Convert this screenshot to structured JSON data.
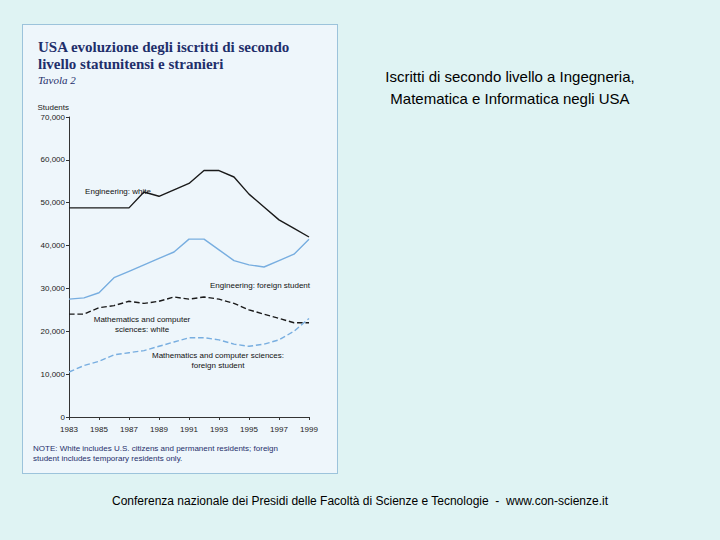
{
  "heading": "Iscritti di secondo livello a Ingegneria,\nMatematica e Informatica negli USA",
  "footer": "Conferenza nazionale dei Presidi delle Facoltà di Scienze e Tecnologie  -  www.con-scienze.it",
  "chart_data": {
    "type": "line",
    "title": "USA evoluzione degli iscritti di secondo\nlivello statunitensi e stranieri",
    "subtitle": "Tavola 2",
    "y_label": "Students",
    "annotations": [
      "NOTE: White includes U.S. citizens and permanent residents; foreign\nstudent includes temporary residents only."
    ],
    "x": [
      1983,
      1984,
      1985,
      1986,
      1987,
      1988,
      1989,
      1990,
      1991,
      1992,
      1993,
      1994,
      1995,
      1996,
      1997,
      1998,
      1999
    ],
    "xlim": [
      1983,
      1999
    ],
    "xticks": [
      1983,
      1985,
      1987,
      1989,
      1991,
      1993,
      1995,
      1997,
      1999
    ],
    "ylim": [
      0,
      70000
    ],
    "yticks": [
      0,
      {
        "value": 10000,
        "label": "10,000"
      },
      {
        "value": 20000,
        "label": "20,000"
      },
      {
        "value": 30000,
        "label": "30,000"
      },
      {
        "value": 40000,
        "label": "40,000"
      },
      {
        "value": 50000,
        "label": "50,000"
      },
      {
        "value": 60000,
        "label": "60,000"
      },
      {
        "value": 70000,
        "label": "70,000"
      }
    ],
    "grid": false,
    "series": [
      {
        "name": "Engineering: white",
        "color": "#1a1a1a",
        "line_style": "solid",
        "values": [
          48800,
          48800,
          48800,
          48800,
          48800,
          52500,
          51500,
          53000,
          54500,
          57500,
          57500,
          56000,
          52000,
          49000,
          46000,
          44000,
          42000
        ]
      },
      {
        "name": "Engineering: foreign student",
        "color": "#78aee0",
        "line_style": "solid",
        "values": [
          27500,
          27800,
          29000,
          32500,
          34000,
          35500,
          37000,
          38500,
          41500,
          41500,
          39000,
          36500,
          35500,
          35000,
          36500,
          38000,
          41500
        ]
      },
      {
        "name": "Mathematics and computer\nsciences: white",
        "color": "#1a1a1a",
        "line_style": "dashed",
        "values": [
          24000,
          24000,
          25500,
          26000,
          27000,
          26500,
          27000,
          28000,
          27500,
          28000,
          27500,
          26500,
          25000,
          24000,
          23000,
          22000,
          22000
        ]
      },
      {
        "name": "Mathematics and computer sciences:\nforeign student",
        "color": "#78aee0",
        "line_style": "dashed",
        "values": [
          10500,
          12000,
          13000,
          14500,
          15000,
          15500,
          16500,
          17500,
          18500,
          18500,
          18000,
          17000,
          16500,
          17000,
          18000,
          20000,
          23000
        ]
      }
    ]
  }
}
